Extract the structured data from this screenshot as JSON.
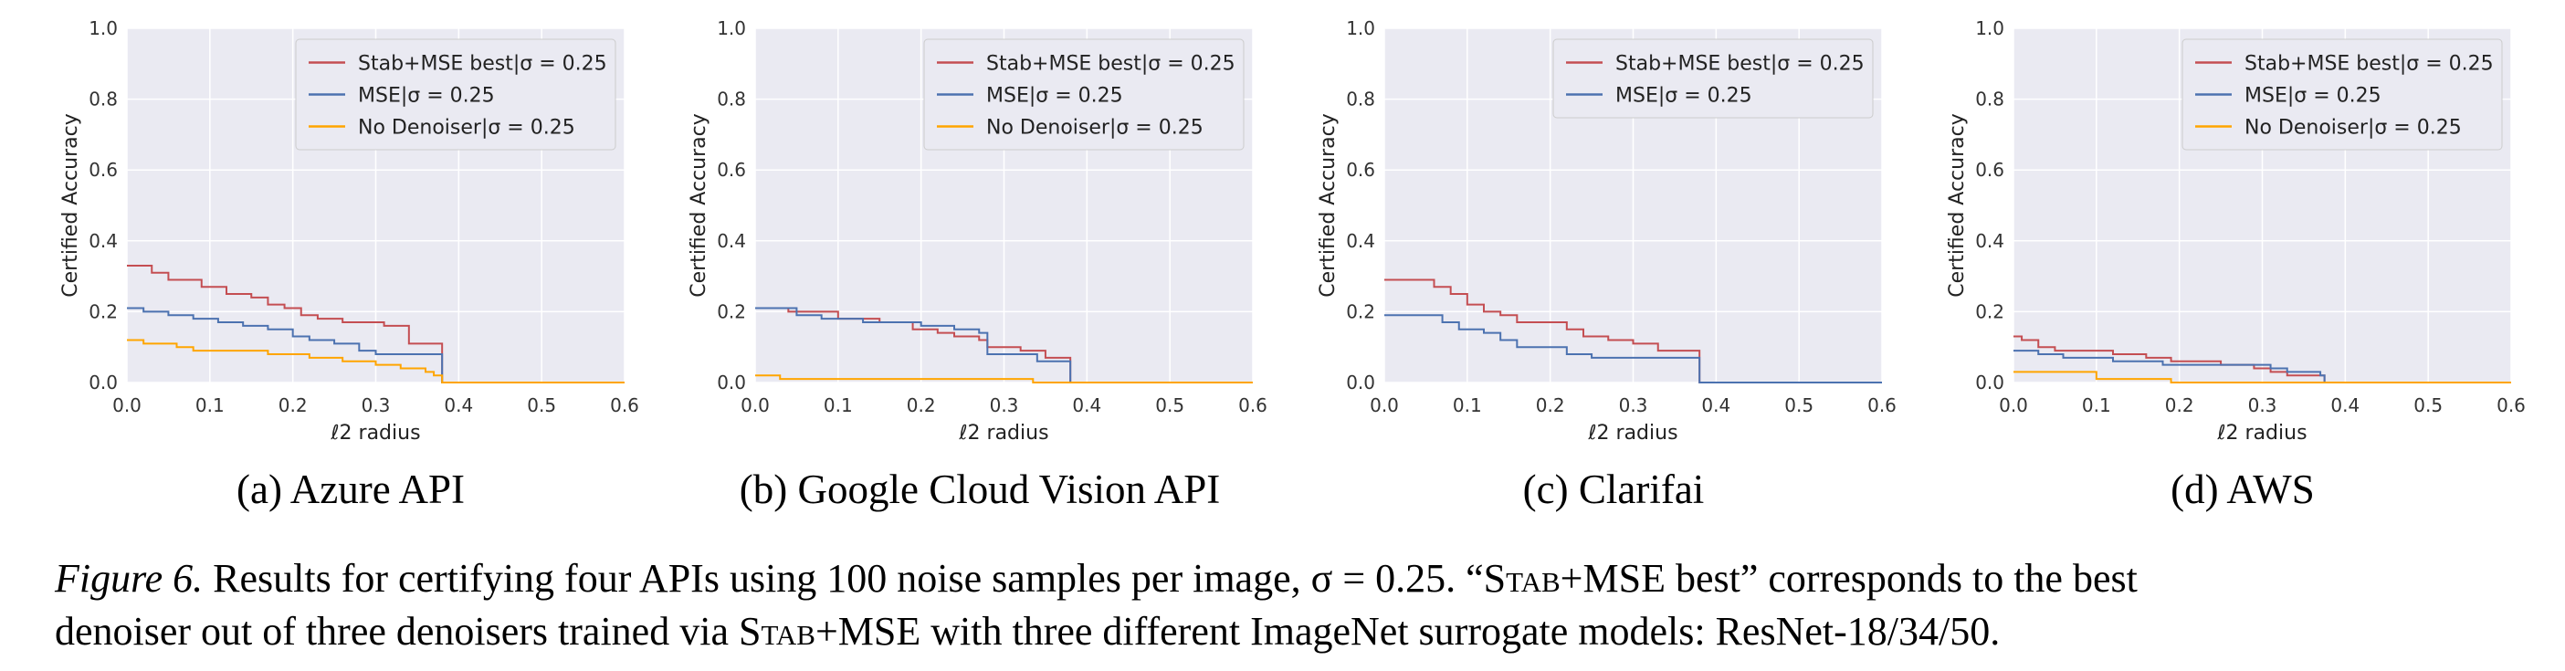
{
  "figure": {
    "caption": {
      "label": "Figure 6.",
      "line1_a": " Results for certifying four APIs using 100 noise samples per image, σ = 0.25. “",
      "line1_sc1": "Stab",
      "line1_b": "+MSE best” corresponds to the best",
      "line2_a": "denoiser out of three denoisers trained via ",
      "line2_sc": "Stab",
      "line2_b": "+MSE with three different ImageNet surrogate models: ResNet-18/34/50."
    }
  },
  "colors": {
    "plot_bg": "#eaeaf2",
    "grid": "#ffffff",
    "stab_mse_best": "#c44e52",
    "mse": "#4c72b0",
    "no_denoiser": "#ffa500"
  },
  "chart_data": [
    {
      "type": "line",
      "subcaption": "(a) Azure API",
      "xlabel": "ℓ2 radius",
      "ylabel": "Certified Accuracy",
      "xlim": [
        0,
        0.6
      ],
      "ylim": [
        0,
        1.0
      ],
      "xticks": [
        "0.0",
        "0.1",
        "0.2",
        "0.3",
        "0.4",
        "0.5",
        "0.6"
      ],
      "yticks": [
        "0.0",
        "0.2",
        "0.4",
        "0.6",
        "0.8",
        "1.0"
      ],
      "grid": true,
      "legend_position": "top-right",
      "series": [
        {
          "name": "Stab+MSE best|σ = 0.25",
          "color_key": "stab_mse_best",
          "x": [
            0,
            0.02,
            0.03,
            0.05,
            0.09,
            0.12,
            0.15,
            0.17,
            0.19,
            0.21,
            0.23,
            0.26,
            0.29,
            0.31,
            0.34,
            0.37,
            0.373,
            0.38,
            0.6
          ],
          "y": [
            0.33,
            0.33,
            0.31,
            0.29,
            0.27,
            0.25,
            0.24,
            0.22,
            0.21,
            0.19,
            0.18,
            0.17,
            0.17,
            0.16,
            0.11,
            0.11,
            0.11,
            0,
            0
          ]
        },
        {
          "name": "MSE|σ = 0.25",
          "color_key": "mse",
          "x": [
            0,
            0.02,
            0.05,
            0.08,
            0.11,
            0.14,
            0.17,
            0.2,
            0.22,
            0.25,
            0.28,
            0.3,
            0.37,
            0.373,
            0.38,
            0.6
          ],
          "y": [
            0.21,
            0.2,
            0.19,
            0.18,
            0.17,
            0.16,
            0.15,
            0.13,
            0.12,
            0.11,
            0.09,
            0.08,
            0.08,
            0.08,
            0,
            0
          ]
        },
        {
          "name": "No Denoiser|σ = 0.25",
          "color_key": "no_denoiser",
          "x": [
            0,
            0.02,
            0.04,
            0.06,
            0.08,
            0.15,
            0.17,
            0.22,
            0.26,
            0.3,
            0.33,
            0.36,
            0.37,
            0.38,
            0.6
          ],
          "y": [
            0.12,
            0.11,
            0.11,
            0.1,
            0.09,
            0.09,
            0.08,
            0.07,
            0.06,
            0.05,
            0.04,
            0.03,
            0.02,
            0,
            0
          ]
        }
      ]
    },
    {
      "type": "line",
      "subcaption": "(b) Google Cloud Vision API",
      "xlabel": "ℓ2 radius",
      "ylabel": "Certified Accuracy",
      "xlim": [
        0,
        0.6
      ],
      "ylim": [
        0,
        1.0
      ],
      "xticks": [
        "0.0",
        "0.1",
        "0.2",
        "0.3",
        "0.4",
        "0.5",
        "0.6"
      ],
      "yticks": [
        "0.0",
        "0.2",
        "0.4",
        "0.6",
        "0.8",
        "1.0"
      ],
      "grid": true,
      "legend_position": "top-right",
      "series": [
        {
          "name": "Stab+MSE best|σ = 0.25",
          "color_key": "stab_mse_best",
          "x": [
            0,
            0.04,
            0.1,
            0.15,
            0.19,
            0.22,
            0.24,
            0.27,
            0.28,
            0.32,
            0.35,
            0.375,
            0.38,
            0.6
          ],
          "y": [
            0.21,
            0.2,
            0.18,
            0.17,
            0.15,
            0.14,
            0.13,
            0.12,
            0.1,
            0.09,
            0.07,
            0.07,
            0,
            0
          ]
        },
        {
          "name": "MSE|σ = 0.25",
          "color_key": "mse",
          "x": [
            0,
            0.02,
            0.05,
            0.08,
            0.13,
            0.17,
            0.2,
            0.24,
            0.27,
            0.28,
            0.34,
            0.375,
            0.38,
            0.6
          ],
          "y": [
            0.21,
            0.21,
            0.19,
            0.18,
            0.17,
            0.17,
            0.16,
            0.15,
            0.14,
            0.08,
            0.06,
            0.06,
            0,
            0
          ]
        },
        {
          "name": "No Denoiser|σ = 0.25",
          "color_key": "no_denoiser",
          "x": [
            0,
            0.02,
            0.03,
            0.33,
            0.335,
            0.6
          ],
          "y": [
            0.02,
            0.02,
            0.01,
            0.01,
            0,
            0
          ]
        }
      ]
    },
    {
      "type": "line",
      "subcaption": "(c) Clarifai",
      "xlabel": "ℓ2 radius",
      "ylabel": "Certified Accuracy",
      "xlim": [
        0,
        0.6
      ],
      "ylim": [
        0,
        1.0
      ],
      "xticks": [
        "0.0",
        "0.1",
        "0.2",
        "0.3",
        "0.4",
        "0.5",
        "0.6"
      ],
      "yticks": [
        "0.0",
        "0.2",
        "0.4",
        "0.6",
        "0.8",
        "1.0"
      ],
      "grid": true,
      "legend_position": "top-right",
      "series": [
        {
          "name": "Stab+MSE best|σ = 0.25",
          "color_key": "stab_mse_best",
          "x": [
            0,
            0.03,
            0.06,
            0.08,
            0.1,
            0.12,
            0.14,
            0.16,
            0.2,
            0.22,
            0.24,
            0.27,
            0.3,
            0.33,
            0.375,
            0.38,
            0.6
          ],
          "y": [
            0.29,
            0.29,
            0.27,
            0.25,
            0.22,
            0.2,
            0.19,
            0.17,
            0.17,
            0.15,
            0.13,
            0.12,
            0.11,
            0.09,
            0.09,
            0,
            0
          ]
        },
        {
          "name": "MSE|σ = 0.25",
          "color_key": "mse",
          "x": [
            0,
            0.04,
            0.07,
            0.09,
            0.12,
            0.14,
            0.16,
            0.2,
            0.22,
            0.25,
            0.375,
            0.38,
            0.6
          ],
          "y": [
            0.19,
            0.19,
            0.17,
            0.15,
            0.14,
            0.12,
            0.1,
            0.1,
            0.08,
            0.07,
            0.07,
            0,
            0
          ]
        }
      ]
    },
    {
      "type": "line",
      "subcaption": "(d) AWS",
      "xlabel": "ℓ2 radius",
      "ylabel": "Certified Accuracy",
      "xlim": [
        0,
        0.6
      ],
      "ylim": [
        0,
        1.0
      ],
      "xticks": [
        "0.0",
        "0.1",
        "0.2",
        "0.3",
        "0.4",
        "0.5",
        "0.6"
      ],
      "yticks": [
        "0.0",
        "0.2",
        "0.4",
        "0.6",
        "0.8",
        "1.0"
      ],
      "grid": true,
      "legend_position": "top-right",
      "series": [
        {
          "name": "Stab+MSE best|σ = 0.25",
          "color_key": "stab_mse_best",
          "x": [
            0,
            0.01,
            0.03,
            0.05,
            0.09,
            0.12,
            0.16,
            0.19,
            0.25,
            0.29,
            0.31,
            0.33,
            0.37,
            0.375,
            0.6
          ],
          "y": [
            0.13,
            0.12,
            0.1,
            0.09,
            0.09,
            0.08,
            0.07,
            0.06,
            0.05,
            0.04,
            0.03,
            0.02,
            0.02,
            0,
            0
          ]
        },
        {
          "name": "MSE|σ = 0.25",
          "color_key": "mse",
          "x": [
            0,
            0.03,
            0.06,
            0.12,
            0.18,
            0.29,
            0.31,
            0.33,
            0.37,
            0.375,
            0.6
          ],
          "y": [
            0.09,
            0.08,
            0.07,
            0.06,
            0.05,
            0.05,
            0.04,
            0.03,
            0.02,
            0,
            0
          ]
        },
        {
          "name": "No Denoiser|σ = 0.25",
          "color_key": "no_denoiser",
          "x": [
            0,
            0.09,
            0.1,
            0.18,
            0.19,
            0.6
          ],
          "y": [
            0.03,
            0.03,
            0.01,
            0.01,
            0,
            0
          ]
        }
      ]
    }
  ]
}
